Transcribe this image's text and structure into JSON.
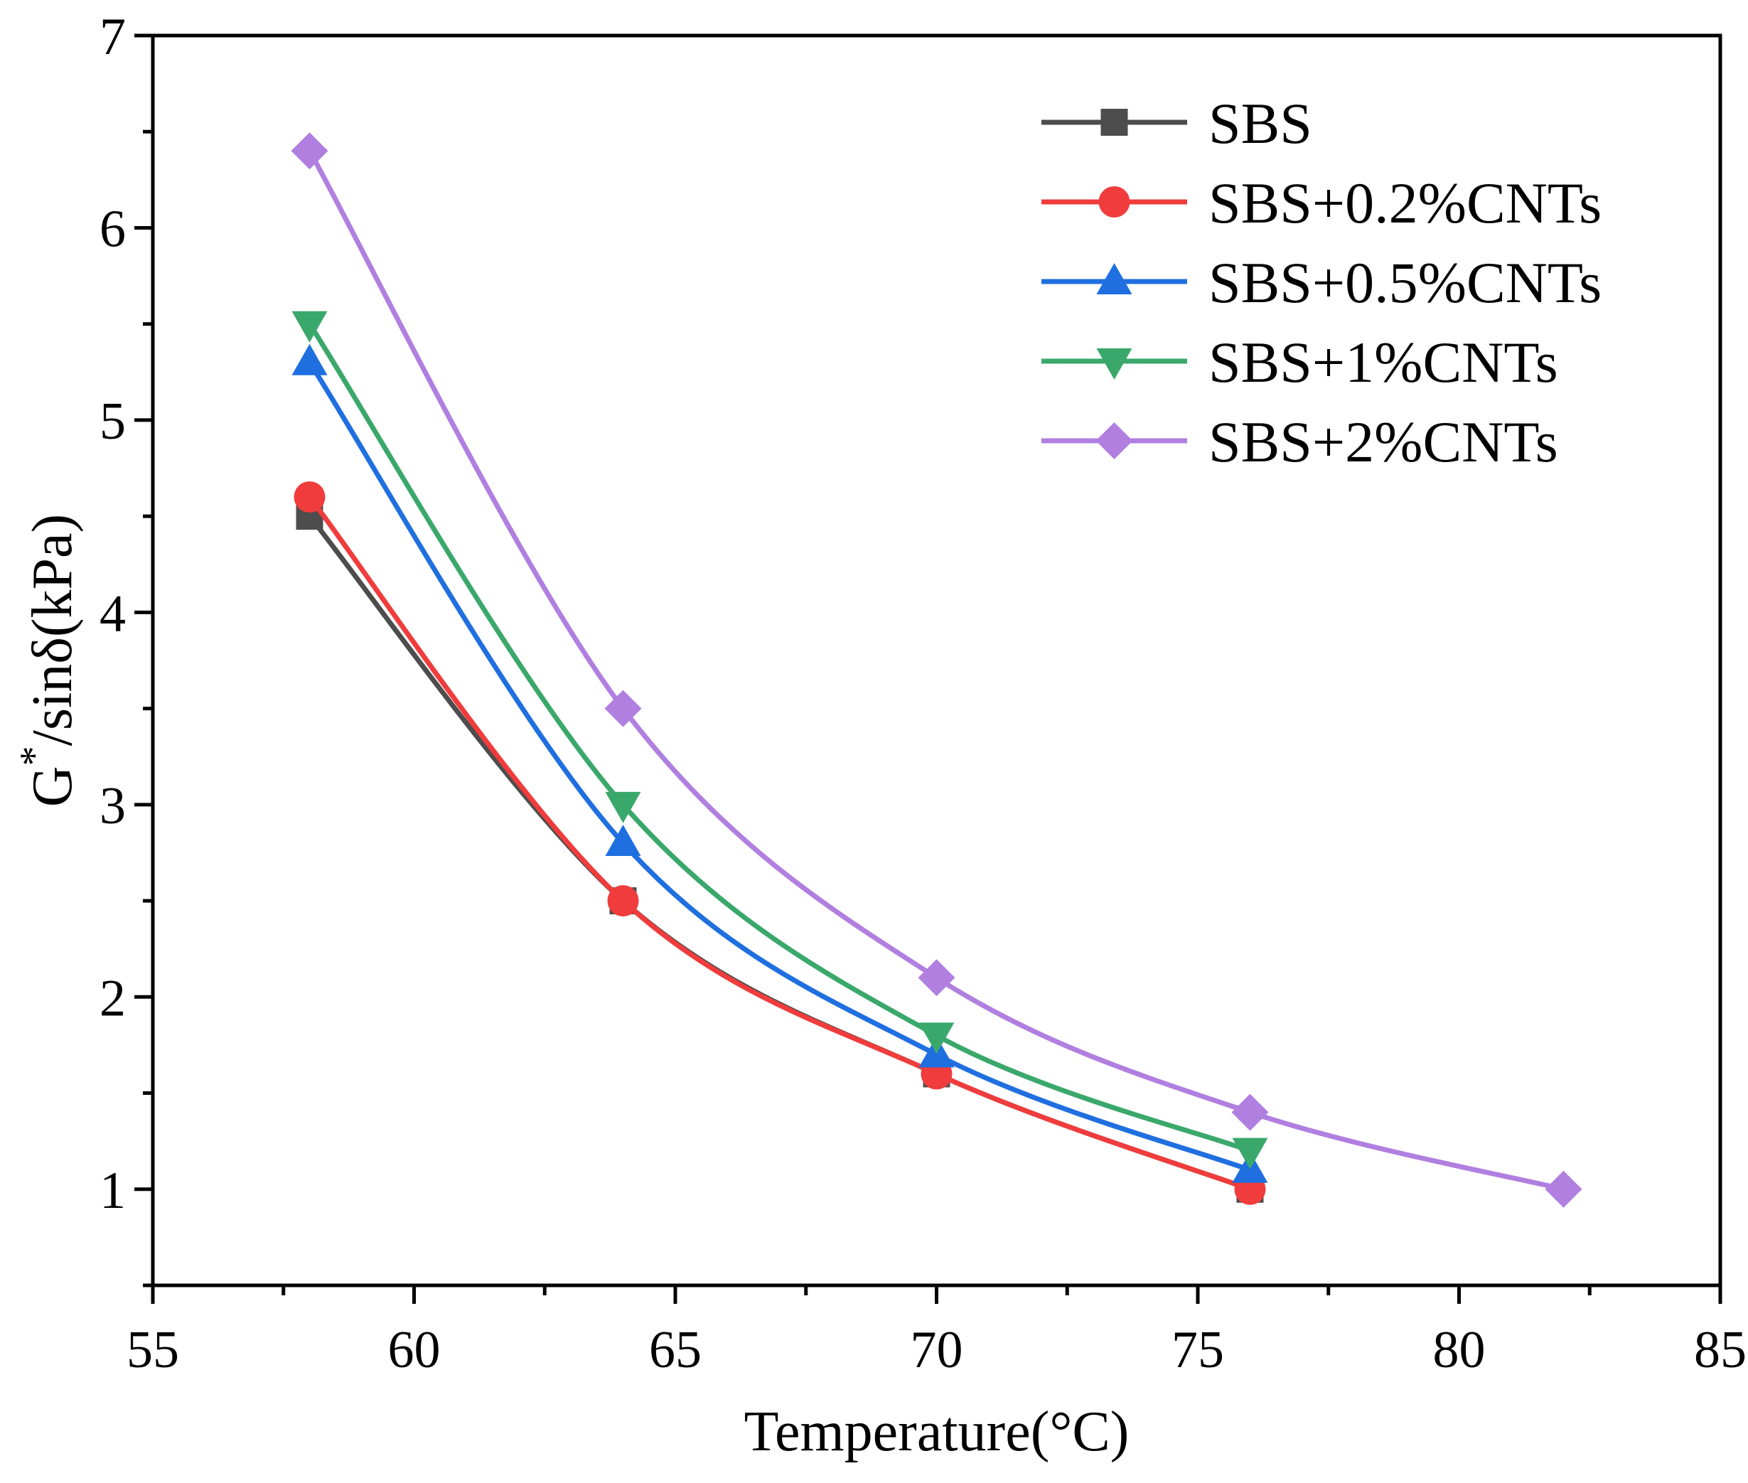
{
  "chart_data": {
    "type": "line",
    "xlabel": "Temperature(°C)",
    "ylabel": "G*/sinδ(kPa)",
    "ylabel_base": "G",
    "ylabel_sup": "*",
    "ylabel_rest": "/sinδ(kPa)",
    "xlim": [
      55,
      85
    ],
    "ylim": [
      0.5,
      7
    ],
    "xticks": [
      55,
      60,
      65,
      70,
      75,
      80,
      85
    ],
    "xtick_labels": [
      "55",
      "60",
      "65",
      "70",
      "75",
      "80",
      "85"
    ],
    "yticks": [
      1,
      2,
      3,
      4,
      5,
      6,
      7
    ],
    "ytick_labels": [
      "1",
      "2",
      "3",
      "4",
      "5",
      "6",
      "7"
    ],
    "grid": false,
    "legend_position": "top-right",
    "series": [
      {
        "name": "SBS",
        "color": "#4d4d4d",
        "marker": "square",
        "x": [
          58,
          64,
          70,
          76
        ],
        "y": [
          4.5,
          2.5,
          1.6,
          1.0
        ]
      },
      {
        "name": "SBS+0.2%CNTs",
        "color": "#f03c3c",
        "marker": "circle",
        "x": [
          58,
          64,
          70,
          76
        ],
        "y": [
          4.6,
          2.5,
          1.6,
          1.0
        ]
      },
      {
        "name": "SBS+0.5%CNTs",
        "color": "#1f6fe0",
        "marker": "triangle-up",
        "x": [
          58,
          64,
          70,
          76
        ],
        "y": [
          5.3,
          2.8,
          1.7,
          1.1
        ]
      },
      {
        "name": "SBS+1%CNTs",
        "color": "#3aa86b",
        "marker": "triangle-down",
        "x": [
          58,
          64,
          70,
          76
        ],
        "y": [
          5.5,
          3.0,
          1.8,
          1.2
        ]
      },
      {
        "name": "SBS+2%CNTs",
        "color": "#b07fe0",
        "marker": "diamond",
        "x": [
          58,
          64,
          70,
          76,
          82
        ],
        "y": [
          6.4,
          3.5,
          2.1,
          1.4,
          1.0
        ]
      }
    ]
  }
}
